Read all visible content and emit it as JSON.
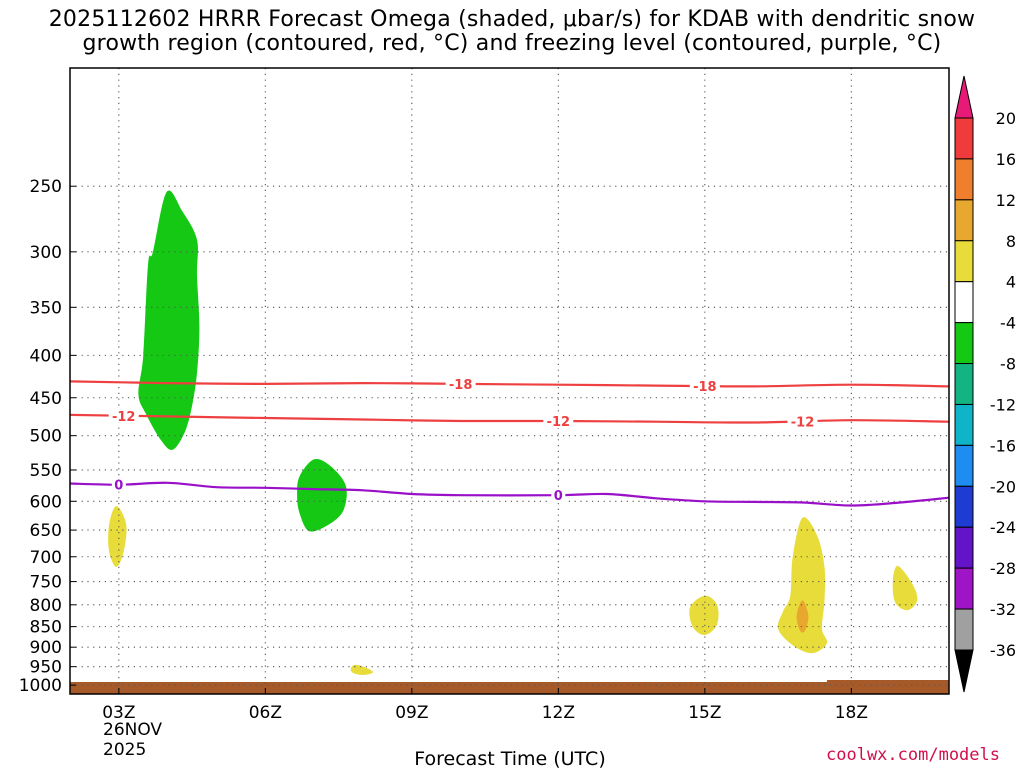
{
  "chart_data": {
    "type": "contour",
    "title_line1": "2025112602 HRRR Forecast Omega (shaded, μbar/s) for KDAB with dendritic snow",
    "title_line2": "growth region (contoured, red, °C) and freezing level (contoured, purple, °C)",
    "xlabel": "Forecast Time (UTC)",
    "x_ticks": [
      {
        "hour": 3,
        "label": "03Z"
      },
      {
        "hour": 6,
        "label": "06Z"
      },
      {
        "hour": 9,
        "label": "09Z"
      },
      {
        "hour": 12,
        "label": "12Z"
      },
      {
        "hour": 15,
        "label": "15Z"
      },
      {
        "hour": 18,
        "label": "18Z"
      }
    ],
    "date_label_day": "26NOV",
    "date_label_year": "2025",
    "xlim": [
      2,
      20
    ],
    "ylim_hpa": [
      1025,
      180
    ],
    "y_ticks": [
      250,
      300,
      350,
      400,
      450,
      500,
      550,
      600,
      650,
      700,
      750,
      800,
      850,
      900,
      950,
      1000
    ],
    "colorbar": {
      "labels": [
        "20",
        "16",
        "12",
        "8",
        "4",
        "-4",
        "-8",
        "-12",
        "-16",
        "-20",
        "-24",
        "-28",
        "-32",
        "-36"
      ],
      "colors": [
        "#e81a78",
        "#ef3b3b",
        "#ef7f2c",
        "#e8a82f",
        "#e8dc3a",
        "#ffffff",
        "#14c814",
        "#14b482",
        "#0fb4c8",
        "#1e8cf0",
        "#1e3cd2",
        "#6414c8",
        "#a014c8",
        "#a0a0a0",
        "#000000"
      ]
    },
    "isotherms": [
      {
        "name": "dgz-top",
        "label": "-18",
        "color": "#ee4040",
        "points": [
          [
            2,
            430
          ],
          [
            4,
            432
          ],
          [
            6,
            433
          ],
          [
            8,
            432
          ],
          [
            10,
            433
          ],
          [
            12,
            434
          ],
          [
            14,
            435
          ],
          [
            16,
            436
          ],
          [
            18,
            434
          ],
          [
            20,
            436
          ]
        ],
        "label_hours": [
          10,
          15
        ]
      },
      {
        "name": "dgz-bottom",
        "label": "-12",
        "color": "#ee4040",
        "points": [
          [
            2,
            472
          ],
          [
            4,
            474
          ],
          [
            6,
            476
          ],
          [
            8,
            478
          ],
          [
            10,
            480
          ],
          [
            12,
            480
          ],
          [
            14,
            481
          ],
          [
            16,
            482
          ],
          [
            18,
            479
          ],
          [
            20,
            481
          ]
        ],
        "label_hours": [
          3.1,
          12,
          17
        ]
      },
      {
        "name": "freezing-level",
        "label": "0",
        "color": "#9a10c8",
        "points": [
          [
            2,
            571
          ],
          [
            3,
            573
          ],
          [
            4,
            570
          ],
          [
            5,
            577
          ],
          [
            6,
            578
          ],
          [
            7,
            580
          ],
          [
            8,
            582
          ],
          [
            9,
            588
          ],
          [
            10,
            590
          ],
          [
            12,
            590
          ],
          [
            13,
            588
          ],
          [
            14,
            595
          ],
          [
            15,
            600
          ],
          [
            16,
            601
          ],
          [
            17,
            602
          ],
          [
            18,
            607
          ],
          [
            19,
            602
          ],
          [
            20,
            594
          ]
        ],
        "label_hours": [
          3.0,
          12.0
        ]
      }
    ],
    "omega_regions": [
      {
        "name": "upward-motion-upper-left",
        "value": "-4 to -8",
        "color": "#14c814",
        "points": [
          [
            3.98,
            254
          ],
          [
            4.3,
            268
          ],
          [
            4.6,
            290
          ],
          [
            4.6,
            320
          ],
          [
            4.65,
            370
          ],
          [
            4.6,
            420
          ],
          [
            4.5,
            460
          ],
          [
            4.35,
            495
          ],
          [
            4.1,
            520
          ],
          [
            3.85,
            505
          ],
          [
            3.55,
            470
          ],
          [
            3.4,
            445
          ],
          [
            3.5,
            400
          ],
          [
            3.6,
            310
          ],
          [
            3.7,
            300
          ]
        ]
      },
      {
        "name": "upward-motion-midlevel",
        "value": "-4 to -8",
        "color": "#14c814",
        "points": [
          [
            7.0,
            534
          ],
          [
            7.35,
            545
          ],
          [
            7.65,
            575
          ],
          [
            7.6,
            615
          ],
          [
            7.3,
            640
          ],
          [
            6.9,
            652
          ],
          [
            6.7,
            620
          ],
          [
            6.65,
            590
          ],
          [
            6.7,
            560
          ]
        ]
      },
      {
        "name": "sinking-0300",
        "value": "4 to 8",
        "color": "#e8dc3a",
        "points": [
          [
            2.95,
            608
          ],
          [
            3.15,
            640
          ],
          [
            3.1,
            690
          ],
          [
            2.95,
            720
          ],
          [
            2.8,
            690
          ],
          [
            2.8,
            640
          ]
        ]
      },
      {
        "name": "sinking-0800",
        "value": "4 to 8",
        "color": "#e8dc3a",
        "points": [
          [
            7.85,
            945
          ],
          [
            8.1,
            955
          ],
          [
            8.2,
            966
          ],
          [
            8.0,
            972
          ],
          [
            7.8,
            967
          ],
          [
            7.75,
            955
          ]
        ]
      },
      {
        "name": "sinking-1500",
        "value": "4 to 8",
        "color": "#e8dc3a",
        "points": [
          [
            15.0,
            780
          ],
          [
            15.25,
            800
          ],
          [
            15.25,
            845
          ],
          [
            15.0,
            870
          ],
          [
            14.75,
            850
          ],
          [
            14.7,
            805
          ]
        ]
      },
      {
        "name": "sinking-1700",
        "value": "4 to 8",
        "color": "#e8dc3a",
        "points": [
          [
            17.0,
            628
          ],
          [
            17.3,
            660
          ],
          [
            17.45,
            720
          ],
          [
            17.45,
            790
          ],
          [
            17.4,
            855
          ],
          [
            17.5,
            890
          ],
          [
            17.2,
            915
          ],
          [
            16.8,
            895
          ],
          [
            16.5,
            855
          ],
          [
            16.6,
            815
          ],
          [
            16.75,
            780
          ],
          [
            16.8,
            700
          ]
        ]
      },
      {
        "name": "sinking-1700-core",
        "value": "8 to 12",
        "color": "#e8a82f",
        "points": [
          [
            17.0,
            790
          ],
          [
            17.12,
            825
          ],
          [
            17.05,
            860
          ],
          [
            16.95,
            860
          ],
          [
            16.88,
            825
          ]
        ]
      },
      {
        "name": "sinking-1900",
        "value": "4 to 8",
        "color": "#e8dc3a",
        "points": [
          [
            18.95,
            718
          ],
          [
            19.25,
            755
          ],
          [
            19.35,
            790
          ],
          [
            19.15,
            812
          ],
          [
            18.9,
            795
          ],
          [
            18.85,
            750
          ]
        ]
      }
    ],
    "terrain_color": "#a65a2a"
  },
  "credit": "coolwx.com/models"
}
